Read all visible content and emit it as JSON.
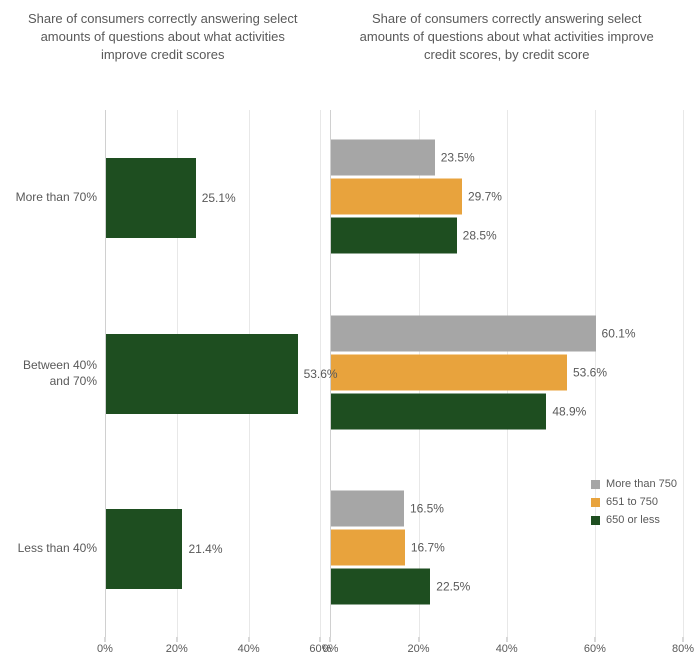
{
  "left_chart": {
    "type": "bar",
    "orientation": "horizontal",
    "title": "Share of consumers correctly answering select amounts of questions about what activities improve credit scores",
    "categories": [
      "More than 70%",
      "Between 40% and 70%",
      "Less than 40%"
    ],
    "values": [
      25.1,
      53.6,
      21.4
    ],
    "value_labels": [
      "25.1%",
      "53.6%",
      "21.4%"
    ],
    "bar_color": "#1e4e20",
    "xlim": [
      0,
      60
    ],
    "xticks": [
      0,
      20,
      40,
      60
    ],
    "xtick_labels": [
      "0%",
      "20%",
      "40%",
      "60%"
    ],
    "grid_color": "#e8e8e8",
    "text_color": "#595959",
    "title_fontsize": 13,
    "label_fontsize": 12
  },
  "right_chart": {
    "type": "grouped_bar",
    "orientation": "horizontal",
    "title": "Share of consumers correctly answering select amounts of questions about what activities improve credit scores, by credit score",
    "categories": [
      "More than 70%",
      "Between 40% and 70%",
      "Less than 40%"
    ],
    "series": [
      {
        "name": "More than 750",
        "color": "#a6a6a6",
        "values": [
          23.5,
          60.1,
          16.5
        ],
        "value_labels": [
          "23.5%",
          "60.1%",
          "16.5%"
        ]
      },
      {
        "name": "651 to 750",
        "color": "#e8a33d",
        "values": [
          29.7,
          53.6,
          16.7
        ],
        "value_labels": [
          "29.7%",
          "53.6%",
          "16.7%"
        ]
      },
      {
        "name": "650 or less",
        "color": "#1e4e20",
        "values": [
          28.5,
          48.9,
          22.5
        ],
        "value_labels": [
          "28.5%",
          "48.9%",
          "22.5%"
        ]
      }
    ],
    "xlim": [
      0,
      80
    ],
    "xticks": [
      0,
      20,
      40,
      60,
      80
    ],
    "xtick_labels": [
      "0%",
      "20%",
      "40%",
      "60%",
      "80%"
    ],
    "grid_color": "#e8e8e8",
    "text_color": "#595959",
    "title_fontsize": 13,
    "label_fontsize": 12,
    "legend_position": "bottom-right-inset"
  }
}
